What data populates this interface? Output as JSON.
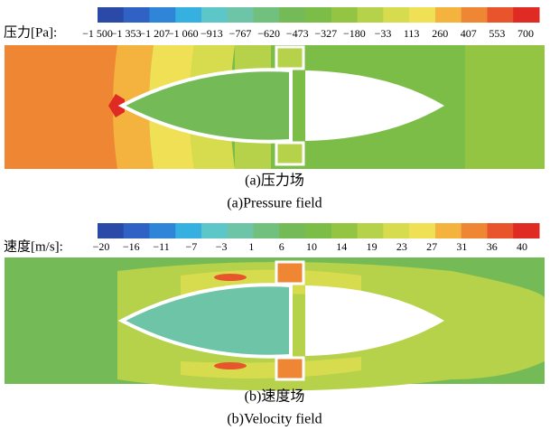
{
  "pressure": {
    "label": "压力[Pa]:",
    "ticks": [
      "−1 500",
      "−1 353",
      "−1 207",
      "−1 060",
      "−913",
      "−767",
      "−620",
      "−473",
      "−327",
      "−180",
      "−33",
      "113",
      "260",
      "407",
      "553",
      "700"
    ],
    "caption_cn": "(a)压力场",
    "caption_en": "(a)Pressure field"
  },
  "velocity": {
    "label": "速度[m/s]:",
    "ticks": [
      "−20",
      "−16",
      "−11",
      "−7",
      "−3",
      "1",
      "6",
      "10",
      "14",
      "19",
      "23",
      "27",
      "31",
      "36",
      "40"
    ],
    "caption_cn": "(b)速度场",
    "caption_en": "(b)Velocity field"
  },
  "colorbar_colors": [
    "#2b4aa8",
    "#2f62c4",
    "#2f86d8",
    "#36b0e0",
    "#5cc6c8",
    "#6ec4a6",
    "#72c07e",
    "#74bb58",
    "#7cbd48",
    "#93c543",
    "#b6d14a",
    "#d7dc4f",
    "#efe055",
    "#f4b23f",
    "#ef8634",
    "#e8552c",
    "#e02a24"
  ]
}
